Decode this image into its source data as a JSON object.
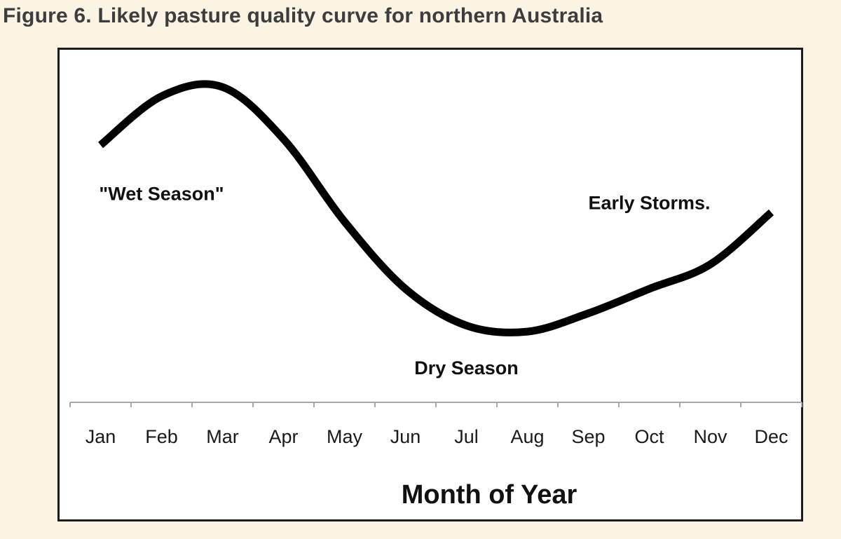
{
  "figure": {
    "title": "Figure 6. Likely pasture quality curve for northern Australia"
  },
  "chart_data": {
    "type": "line",
    "title": "",
    "xlabel": "Month of Year",
    "ylabel": "",
    "categories": [
      "Jan",
      "Feb",
      "Mar",
      "Apr",
      "May",
      "Jun",
      "Jul",
      "Aug",
      "Sep",
      "Oct",
      "Nov",
      "Dec"
    ],
    "series": [
      {
        "values": [
          80,
          96,
          99,
          82,
          55,
          33,
          21,
          19,
          25,
          33,
          41,
          58
        ]
      }
    ],
    "ylim": [
      0,
      105
    ],
    "grid": false,
    "legend": "none",
    "line_color": "#000000",
    "annotations": [
      {
        "text": "\"Wet Season\"",
        "x": "Feb",
        "y": 62
      },
      {
        "text": "Dry Season",
        "x": "Jul",
        "y": 5
      },
      {
        "text": "Early Storms.",
        "x": "Oct",
        "y": 59
      }
    ]
  }
}
